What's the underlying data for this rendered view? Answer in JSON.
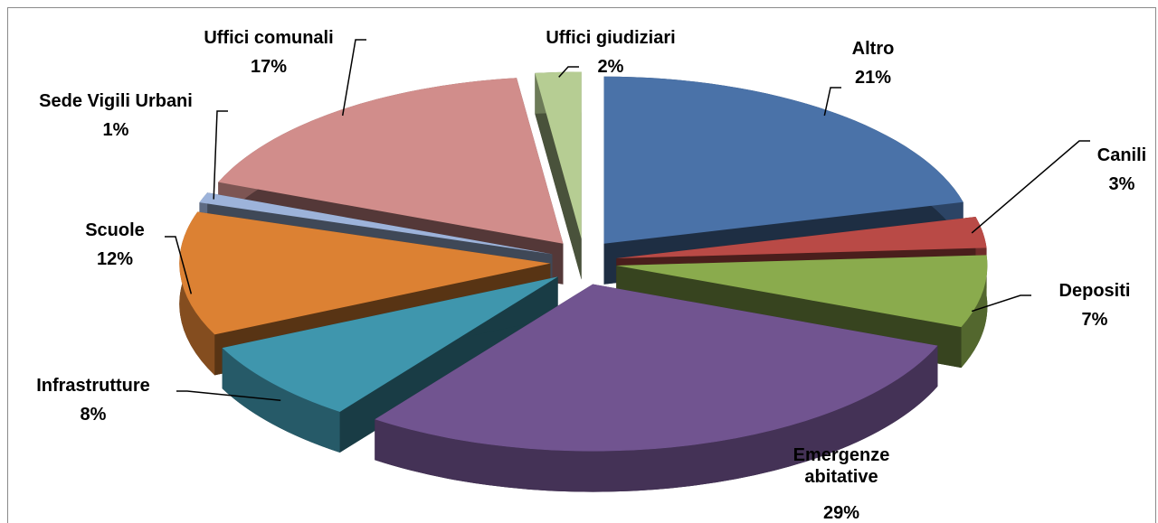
{
  "chart_data": {
    "type": "pie3d",
    "categories": [
      "Altro",
      "Canili",
      "Depositi",
      "Emergenze abitative",
      "Infrastrutture",
      "Scuole",
      "Sede Vigili Urbani",
      "Uffici comunali",
      "Uffici giudiziari"
    ],
    "values": [
      21,
      3,
      7,
      29,
      8,
      12,
      1,
      17,
      2
    ],
    "value_labels": [
      "21%",
      "3%",
      "7%",
      "29%",
      "8%",
      "12%",
      "1%",
      "17%",
      "2%"
    ],
    "colors": [
      "#4a72a8",
      "#b94a46",
      "#8aab4d",
      "#715490",
      "#3f96ad",
      "#dc8133",
      "#9db3da",
      "#d18d8b",
      "#b6cd93"
    ]
  }
}
